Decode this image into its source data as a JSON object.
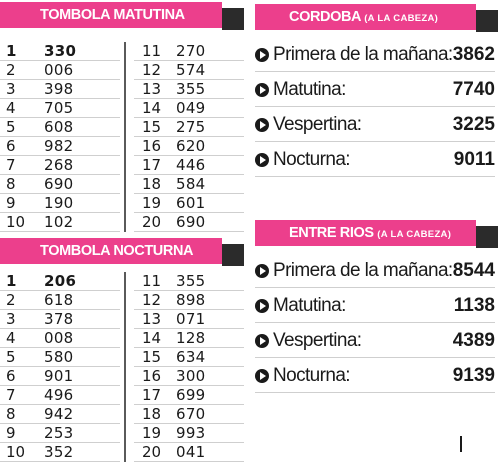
{
  "tombola_matutina": {
    "title": "TOMBOLA MATUTINA",
    "rows": [
      {
        "pos": "1",
        "num": "330"
      },
      {
        "pos": "2",
        "num": "006"
      },
      {
        "pos": "3",
        "num": "398"
      },
      {
        "pos": "4",
        "num": "705"
      },
      {
        "pos": "5",
        "num": "608"
      },
      {
        "pos": "6",
        "num": "982"
      },
      {
        "pos": "7",
        "num": "268"
      },
      {
        "pos": "8",
        "num": "690"
      },
      {
        "pos": "9",
        "num": "190"
      },
      {
        "pos": "10",
        "num": "102"
      },
      {
        "pos": "11",
        "num": "270"
      },
      {
        "pos": "12",
        "num": "574"
      },
      {
        "pos": "13",
        "num": "355"
      },
      {
        "pos": "14",
        "num": "049"
      },
      {
        "pos": "15",
        "num": "275"
      },
      {
        "pos": "16",
        "num": "620"
      },
      {
        "pos": "17",
        "num": "446"
      },
      {
        "pos": "18",
        "num": "584"
      },
      {
        "pos": "19",
        "num": "601"
      },
      {
        "pos": "20",
        "num": "690"
      }
    ]
  },
  "tombola_nocturna": {
    "title": "TOMBOLA NOCTURNA",
    "rows": [
      {
        "pos": "1",
        "num": "206"
      },
      {
        "pos": "2",
        "num": "618"
      },
      {
        "pos": "3",
        "num": "378"
      },
      {
        "pos": "4",
        "num": "008"
      },
      {
        "pos": "5",
        "num": "580"
      },
      {
        "pos": "6",
        "num": "901"
      },
      {
        "pos": "7",
        "num": "496"
      },
      {
        "pos": "8",
        "num": "942"
      },
      {
        "pos": "9",
        "num": "253"
      },
      {
        "pos": "10",
        "num": "352"
      },
      {
        "pos": "11",
        "num": "355"
      },
      {
        "pos": "12",
        "num": "898"
      },
      {
        "pos": "13",
        "num": "071"
      },
      {
        "pos": "14",
        "num": "128"
      },
      {
        "pos": "15",
        "num": "634"
      },
      {
        "pos": "16",
        "num": "300"
      },
      {
        "pos": "17",
        "num": "699"
      },
      {
        "pos": "18",
        "num": "670"
      },
      {
        "pos": "19",
        "num": "993"
      },
      {
        "pos": "20",
        "num": "041"
      }
    ]
  },
  "cordoba": {
    "title": "CORDOBA",
    "subtitle": "(A LA CABEZA)",
    "results": [
      {
        "label": "Primera de la mañana:",
        "value": "3862"
      },
      {
        "label": "Matutina:",
        "value": "7740"
      },
      {
        "label": "Vespertina:",
        "value": "3225"
      },
      {
        "label": "Nocturna:",
        "value": "9011"
      }
    ]
  },
  "entre_rios": {
    "title": "ENTRE RIOS",
    "subtitle": "(A LA CABEZA)",
    "results": [
      {
        "label": "Primera de la mañana:",
        "value": "8544"
      },
      {
        "label": "Matutina:",
        "value": "1138"
      },
      {
        "label": "Vespertina:",
        "value": "4389"
      },
      {
        "label": "Nocturna:",
        "value": "9139"
      }
    ]
  },
  "colors": {
    "banner_pink": "#ec3f8c",
    "banner_dark": "#2b2b2b",
    "text": "#1a1a1a"
  },
  "icons": {
    "bullet": "play-circle-icon"
  }
}
